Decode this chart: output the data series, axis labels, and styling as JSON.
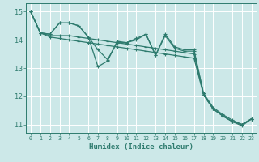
{
  "background_color": "#cce8e8",
  "grid_color": "#ffffff",
  "line_color": "#2e7b6e",
  "xlabel": "Humidex (Indice chaleur)",
  "ylim": [
    10.7,
    15.3
  ],
  "xlim": [
    -0.5,
    23.5
  ],
  "yticks": [
    11,
    12,
    13,
    14,
    15
  ],
  "xticks": [
    0,
    1,
    2,
    3,
    4,
    5,
    6,
    7,
    8,
    9,
    10,
    11,
    12,
    13,
    14,
    15,
    16,
    17,
    18,
    19,
    20,
    21,
    22,
    23
  ],
  "series": [
    [
      15.0,
      14.25,
      14.2,
      14.6,
      14.6,
      14.5,
      14.1,
      13.05,
      13.25,
      13.95,
      13.9,
      14.05,
      14.2,
      13.45,
      14.2,
      13.75,
      13.65,
      13.65,
      12.1,
      11.6,
      11.35,
      11.15,
      11.0,
      11.2
    ],
    [
      15.0,
      14.25,
      14.2,
      14.6,
      14.6,
      14.5,
      14.1,
      13.65,
      13.3,
      13.9,
      13.9,
      14.0,
      14.2,
      13.45,
      14.15,
      13.7,
      13.6,
      13.6,
      12.05,
      11.55,
      11.3,
      11.1,
      10.95,
      11.2
    ],
    [
      15.0,
      14.25,
      14.15,
      14.15,
      14.15,
      14.1,
      14.05,
      14.0,
      13.95,
      13.9,
      13.85,
      13.8,
      13.75,
      13.7,
      13.65,
      13.6,
      13.55,
      13.5,
      12.05,
      11.55,
      11.3,
      11.1,
      11.0,
      11.2
    ],
    [
      15.0,
      14.25,
      14.1,
      14.05,
      14.0,
      13.95,
      13.9,
      13.85,
      13.8,
      13.75,
      13.7,
      13.65,
      13.6,
      13.55,
      13.5,
      13.45,
      13.4,
      13.35,
      12.05,
      11.55,
      11.3,
      11.1,
      11.0,
      11.2
    ]
  ]
}
